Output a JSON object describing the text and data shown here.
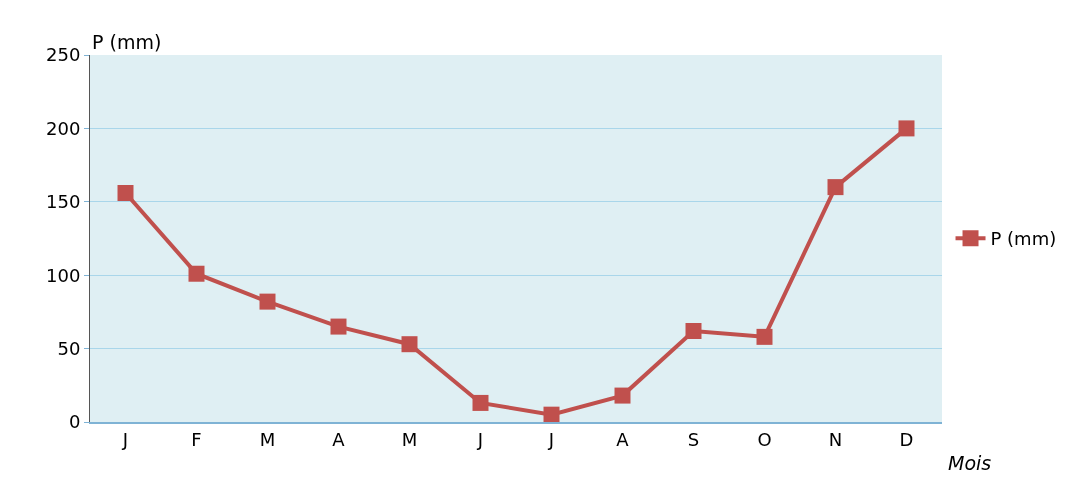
{
  "chart_data": {
    "type": "line",
    "ylabel": "P (mm)",
    "xlabel": "Mois",
    "categories": [
      "J",
      "F",
      "M",
      "A",
      "M",
      "J",
      "J",
      "A",
      "S",
      "O",
      "N",
      "D"
    ],
    "series": [
      {
        "name": "P (mm)",
        "color": "#c0504d",
        "values": [
          156,
          101,
          82,
          65,
          53,
          13,
          5,
          18,
          62,
          58,
          160,
          200
        ]
      }
    ],
    "ylim": [
      0,
      250
    ],
    "yticks": [
      0,
      50,
      100,
      150,
      200,
      250
    ],
    "grid": "y",
    "legend": "right",
    "marker": "square",
    "line_style": "solid"
  }
}
